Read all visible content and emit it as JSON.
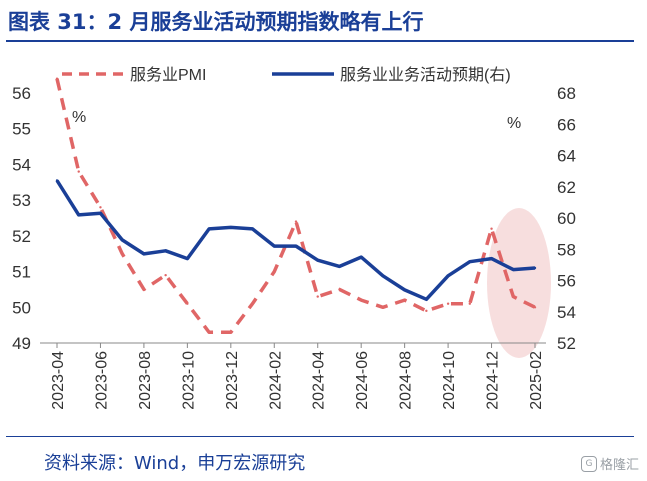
{
  "title": "图表 31：2 月服务业活动预期指数略有上行",
  "source": "资料来源：Wind，申万宏源研究",
  "watermark": "格隆汇",
  "watermark_logo": "G",
  "chart_data": {
    "type": "line",
    "x": [
      "2023-04",
      "2023-05",
      "2023-06",
      "2023-07",
      "2023-08",
      "2023-09",
      "2023-10",
      "2023-11",
      "2023-12",
      "2024-01",
      "2024-02",
      "2024-03",
      "2024-04",
      "2024-05",
      "2024-06",
      "2024-07",
      "2024-08",
      "2024-09",
      "2024-10",
      "2024-11",
      "2024-12",
      "2025-01",
      "2025-02"
    ],
    "xticks": [
      "2023-04",
      "2023-06",
      "2023-08",
      "2023-10",
      "2023-12",
      "2024-02",
      "2024-04",
      "2024-06",
      "2024-08",
      "2024-10",
      "2024-12",
      "2025-02"
    ],
    "series": [
      {
        "name": "服务业PMI",
        "axis": "left",
        "style": "dashed",
        "color": "#e06666",
        "values": [
          56.4,
          53.8,
          52.8,
          51.5,
          50.5,
          50.9,
          50.1,
          49.3,
          49.3,
          50.1,
          51.0,
          52.4,
          50.3,
          50.5,
          50.2,
          50.0,
          50.2,
          49.9,
          50.1,
          50.1,
          52.2,
          50.3,
          50.0
        ]
      },
      {
        "name": "服务业业务活动预期(右)",
        "axis": "right",
        "style": "solid",
        "color": "#1a3f97",
        "values": [
          62.4,
          60.2,
          60.3,
          58.6,
          57.7,
          57.9,
          57.4,
          59.3,
          59.4,
          59.3,
          58.2,
          58.2,
          57.3,
          56.9,
          57.5,
          56.3,
          55.4,
          54.8,
          56.3,
          57.2,
          57.4,
          56.7,
          56.8
        ]
      }
    ],
    "left_axis": {
      "label": "%",
      "ylim": [
        49,
        56
      ],
      "ticks": [
        49,
        50,
        51,
        52,
        53,
        54,
        55,
        56
      ]
    },
    "right_axis": {
      "label": "%",
      "ylim": [
        52,
        68
      ],
      "ticks": [
        52,
        54,
        56,
        58,
        60,
        62,
        64,
        66,
        68
      ]
    },
    "highlight": {
      "from": "2024-12",
      "to": "2025-02",
      "color": "#f5d6d6"
    },
    "legend_position": "top",
    "grid": false
  }
}
